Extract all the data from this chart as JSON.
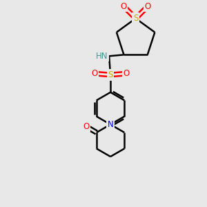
{
  "bg_color": "#e8e8e8",
  "atom_colors": {
    "C": "#000000",
    "H": "#4a9090",
    "N": "#0000ff",
    "O": "#ff0000",
    "S": "#ccaa00"
  },
  "bond_color": "#000000",
  "line_width": 1.8,
  "figsize": [
    3.0,
    3.0
  ],
  "dpi": 100,
  "xlim": [
    -2.5,
    2.5
  ],
  "ylim": [
    -3.8,
    3.8
  ]
}
